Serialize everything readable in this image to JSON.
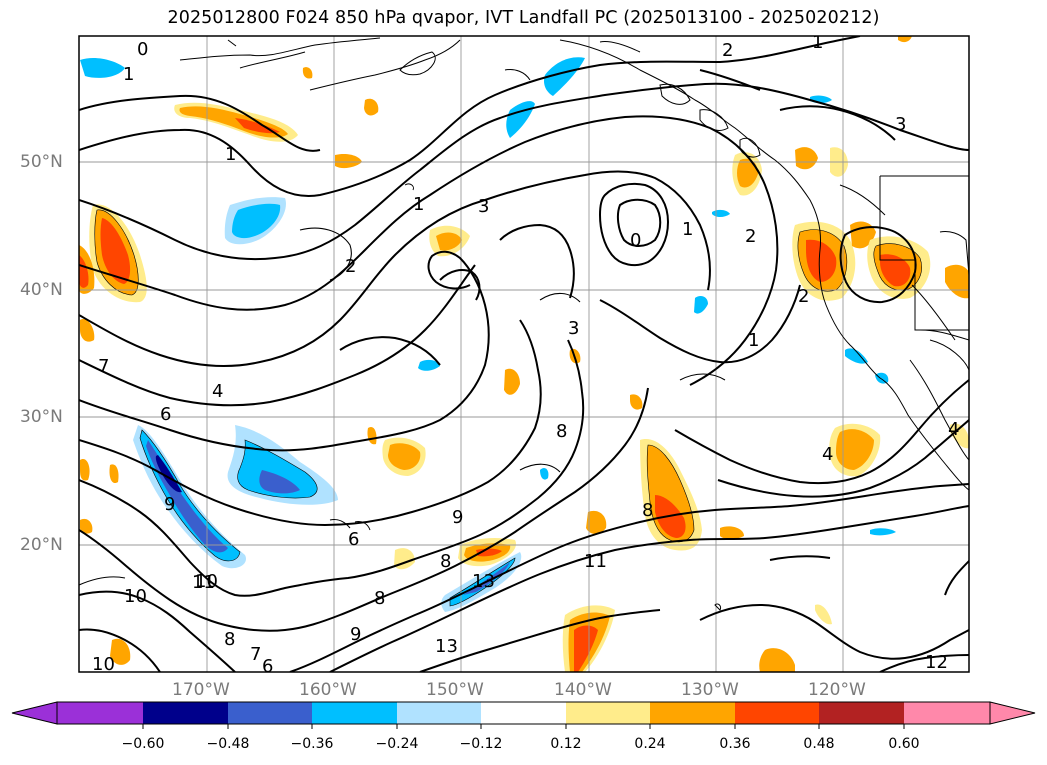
{
  "title": "2025012800 F024 850 hPa qvapor, IVT Landfall PC (2025013100 - 2025020212)",
  "latitude_labels": [
    "50°N",
    "40°N",
    "30°N",
    "20°N"
  ],
  "longitude_labels": [
    "170°W",
    "160°W",
    "150°W",
    "140°W",
    "130°W",
    "120°W"
  ],
  "colorbar": {
    "colors": [
      "#9b30d8",
      "#00008b",
      "#3a5fcd",
      "#00bfff",
      "#b0e2ff",
      "#ffffff",
      "#ffec8b",
      "#ffa500",
      "#ff4500",
      "#b22222",
      "#ff88aa"
    ],
    "tick_labels": [
      "−0.60",
      "−0.48",
      "−0.36",
      "−0.24",
      "−0.12",
      "0.12",
      "0.24",
      "0.36",
      "0.48",
      "0.60"
    ]
  },
  "contour_labels": [
    "0",
    "1",
    "2",
    "3",
    "4",
    "6",
    "7",
    "8",
    "9",
    "10",
    "11",
    "12",
    "13",
    "6",
    "1",
    "1",
    "1",
    "2",
    "2",
    "2",
    "3",
    "3",
    "4",
    "4",
    "0",
    "1",
    "8",
    "8",
    "9",
    "11",
    "10",
    "8",
    "7",
    "6",
    "8",
    "9",
    "10",
    "13",
    "1"
  ]
}
